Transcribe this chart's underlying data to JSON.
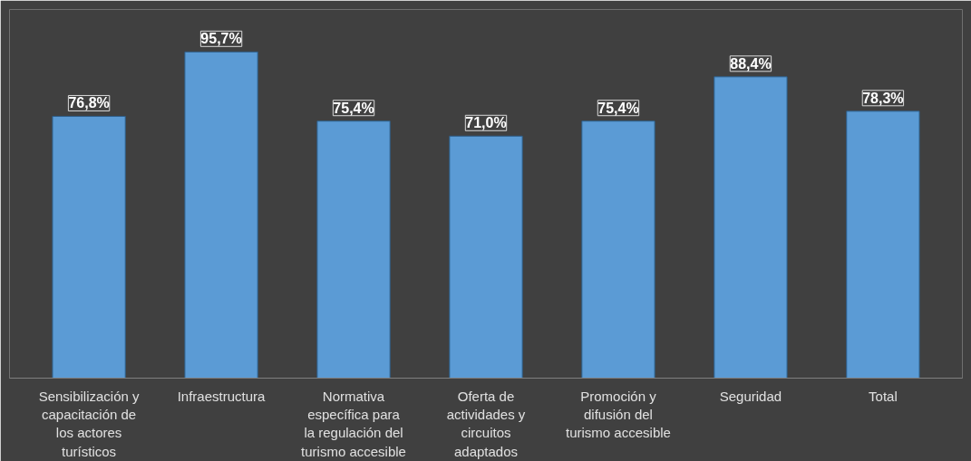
{
  "chart_data": {
    "type": "bar",
    "categories": [
      "Sensibilización y capacitación de los actores turísticos",
      "Infraestructura",
      "Normativa específica para la regulación del turismo accesible",
      "Oferta de actividades y circuitos adaptados",
      "Promoción y difusión del turismo accesible",
      "Seguridad",
      "Total"
    ],
    "values": [
      76.8,
      95.7,
      75.4,
      71.0,
      75.4,
      88.4,
      78.3
    ],
    "value_labels": [
      "76,8%",
      "95,7%",
      "75,4%",
      "71,0%",
      "75,4%",
      "88,4%",
      "78,3%"
    ],
    "color": "#5b9bd5"
  }
}
